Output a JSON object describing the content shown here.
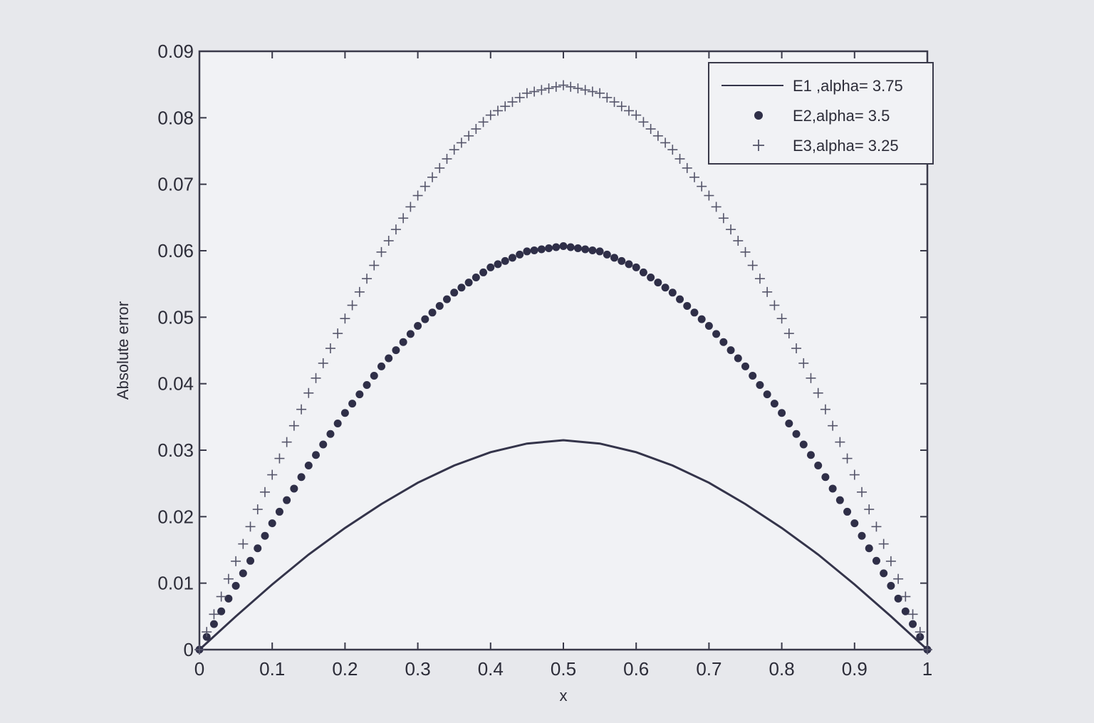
{
  "chart_data": {
    "type": "scatter",
    "xlabel": "x",
    "ylabel": "Absolute error",
    "xlim": [
      0,
      1
    ],
    "ylim": [
      0,
      0.09
    ],
    "xticks": [
      0,
      0.1,
      0.2,
      0.3,
      0.4,
      0.5,
      0.6,
      0.7,
      0.8,
      0.9,
      1
    ],
    "xtick_labels": [
      "0",
      "0.1",
      "0.2",
      "0.3",
      "0.4",
      "0.5",
      "0.6",
      "0.7",
      "0.8",
      "0.9",
      "1"
    ],
    "yticks": [
      0,
      0.01,
      0.02,
      0.03,
      0.04,
      0.05,
      0.06,
      0.07,
      0.08,
      0.09
    ],
    "ytick_labels": [
      "0",
      "0.01",
      "0.02",
      "0.03",
      "0.04",
      "0.05",
      "0.06",
      "0.07",
      "0.08",
      "0.09"
    ],
    "grid": false,
    "legend_position": "top-right",
    "x": [
      0,
      0.05,
      0.1,
      0.15,
      0.2,
      0.25,
      0.3,
      0.35,
      0.4,
      0.45,
      0.5,
      0.55,
      0.6,
      0.65,
      0.7,
      0.75,
      0.8,
      0.85,
      0.9,
      0.95,
      1
    ],
    "series": [
      {
        "name": "E1 ,alpha= 3.75",
        "marker": "line",
        "color": "#34344a",
        "values": [
          0,
          0.005,
          0.0098,
          0.0143,
          0.0183,
          0.0219,
          0.0251,
          0.0277,
          0.0297,
          0.031,
          0.0315,
          0.031,
          0.0297,
          0.0277,
          0.0251,
          0.0219,
          0.0183,
          0.0143,
          0.0098,
          0.005,
          0
        ]
      },
      {
        "name": "E2,alpha= 3.5",
        "marker": "dot",
        "color": "#2f2f48",
        "values": [
          0,
          0.0096,
          0.019,
          0.0277,
          0.0356,
          0.0426,
          0.0487,
          0.0537,
          0.0575,
          0.0599,
          0.0607,
          0.0599,
          0.0575,
          0.0537,
          0.0487,
          0.0426,
          0.0356,
          0.0277,
          0.019,
          0.0096,
          0
        ]
      },
      {
        "name": "E3,alpha= 3.25",
        "marker": "plus",
        "color": "#55556a",
        "values": [
          0,
          0.0133,
          0.0263,
          0.0386,
          0.0498,
          0.0598,
          0.0683,
          0.0752,
          0.0804,
          0.0837,
          0.0849,
          0.0837,
          0.0804,
          0.0752,
          0.0683,
          0.0598,
          0.0498,
          0.0386,
          0.0263,
          0.0133,
          0
        ]
      }
    ]
  }
}
